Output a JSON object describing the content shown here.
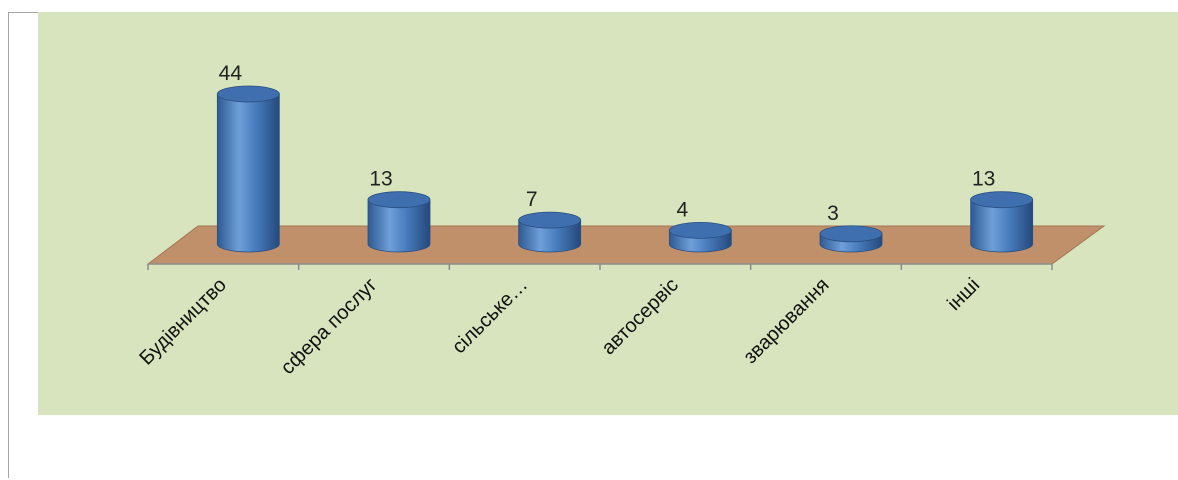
{
  "chart_data": {
    "type": "bar",
    "categories": [
      "Будівництво",
      "сфера послуг",
      "сільське…",
      "автосервіс",
      "зварювання",
      "інші"
    ],
    "values": [
      44,
      13,
      7,
      4,
      3,
      13
    ],
    "data_labels": [
      "44",
      "13",
      "7",
      "4",
      "3",
      "13"
    ],
    "ylim": [
      0,
      44
    ],
    "grid": false,
    "legend": "none",
    "style": "3d-cylinder",
    "colors": {
      "bar": "#4f81bd",
      "floor": "#c0906a",
      "background": "#d7e4bd"
    }
  }
}
